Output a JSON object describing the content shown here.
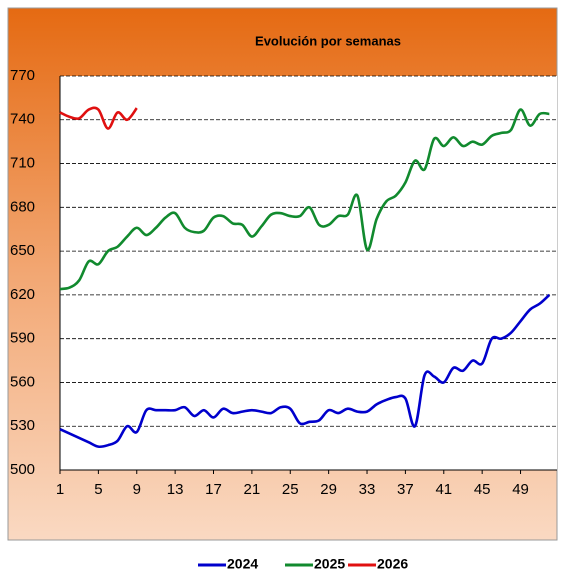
{
  "chart_data": {
    "type": "line",
    "title": "Evolución por semanas",
    "x": [
      1,
      2,
      3,
      4,
      5,
      6,
      7,
      8,
      9,
      10,
      11,
      12,
      13,
      14,
      15,
      16,
      17,
      18,
      19,
      20,
      21,
      22,
      23,
      24,
      25,
      26,
      27,
      28,
      29,
      30,
      31,
      32,
      33,
      34,
      35,
      36,
      37,
      38,
      39,
      40,
      41,
      42,
      43,
      44,
      45,
      46,
      47,
      48,
      49,
      50,
      51,
      52
    ],
    "series": [
      {
        "name": "2024",
        "color": "#0000cc",
        "values": [
          528,
          525,
          522,
          519,
          516,
          517,
          520,
          530,
          526,
          541,
          541,
          541,
          541,
          543,
          537,
          541,
          536,
          542,
          539,
          540,
          541,
          540,
          539,
          543,
          542,
          532,
          533,
          534,
          541,
          539,
          542,
          540,
          540,
          545,
          548,
          550,
          549,
          530,
          565,
          564,
          560,
          570,
          568,
          575,
          573,
          590,
          590,
          594,
          602,
          610,
          614,
          620
        ]
      },
      {
        "name": "2025",
        "color": "#118a2e",
        "values": [
          624,
          625,
          630,
          643,
          641,
          650,
          653,
          660,
          666,
          661,
          666,
          673,
          676,
          666,
          663,
          664,
          673,
          674,
          669,
          668,
          660,
          667,
          675,
          676,
          674,
          674,
          680,
          668,
          668,
          674,
          675,
          688,
          651,
          672,
          684,
          688,
          697,
          712,
          706,
          727,
          722,
          728,
          722,
          725,
          723,
          729,
          731,
          733,
          747,
          736,
          744,
          744
        ]
      },
      {
        "name": "2026",
        "color": "#e01010",
        "values": [
          745,
          742,
          741,
          747,
          747,
          734,
          745,
          740,
          748,
          null,
          null,
          null,
          null,
          null,
          null,
          null,
          null,
          null,
          null,
          null,
          null,
          null,
          null,
          null,
          null,
          null,
          null,
          null,
          null,
          null,
          null,
          null,
          null,
          null,
          null,
          null,
          null,
          null,
          null,
          null,
          null,
          null,
          null,
          null,
          null,
          null,
          null,
          null,
          null,
          null,
          null,
          null
        ]
      }
    ],
    "xlim": [
      1,
      52.8
    ],
    "xticks": [
      1,
      5,
      9,
      13,
      17,
      21,
      25,
      29,
      33,
      37,
      41,
      45,
      49
    ],
    "ylim": [
      500,
      770
    ],
    "yticks": [
      500,
      530,
      560,
      590,
      620,
      650,
      680,
      710,
      740,
      770
    ],
    "grid": true,
    "legend": "bottom"
  }
}
